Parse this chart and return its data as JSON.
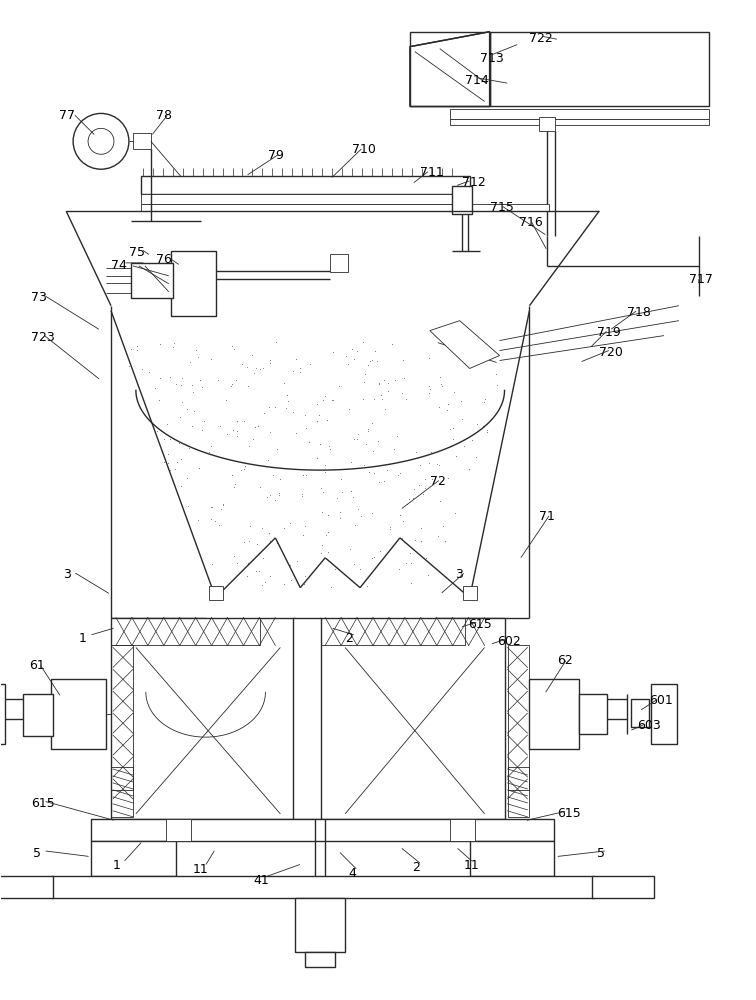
{
  "fig_width": 7.56,
  "fig_height": 10.0,
  "bg_color": "#ffffff",
  "lc": "#2a2a2a",
  "lw": 1.0,
  "tlw": 0.6
}
